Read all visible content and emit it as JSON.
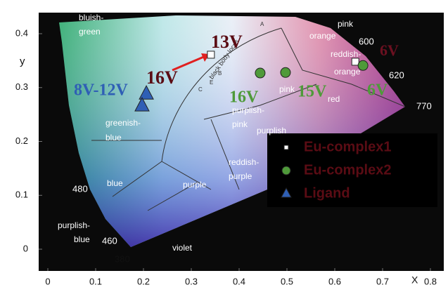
{
  "chart_data": {
    "type": "scatter",
    "x_label": "X",
    "y_label": "y",
    "xlim": [
      -0.02,
      0.83
    ],
    "ylim": [
      -0.05,
      0.44
    ],
    "xticks": [
      0,
      0.1,
      0.2,
      0.3,
      0.4,
      0.5,
      0.6,
      0.7,
      0.8
    ],
    "yticks": [
      0,
      0.1,
      0.2,
      0.3,
      0.4
    ],
    "legend_position": "lower right",
    "series": [
      {
        "name": "Eu-complex1",
        "color": "#ffffff",
        "marker": "square",
        "x": [
          0.341,
          0.643
        ],
        "values": [
          0.361,
          0.348
        ]
      },
      {
        "name": "Eu-complex2",
        "color": "#4f9a3a",
        "marker": "circle",
        "x": [
          0.444,
          0.497,
          0.659
        ],
        "values": [
          0.327,
          0.328,
          0.341
        ]
      },
      {
        "name": "Ligand",
        "color": "#2f5fb5",
        "marker": "triangle",
        "x": [
          0.206,
          0.197
        ],
        "values": [
          0.289,
          0.267
        ]
      }
    ],
    "point_labels": [
      "13V",
      "16V",
      "8V-12V",
      "16V",
      "15V",
      "6V",
      "6V"
    ],
    "regions": [
      "bluish-",
      "green",
      "greenish-",
      "blue",
      "blue",
      "purplish-",
      "blue",
      "violet",
      "purple",
      "reddish-",
      "purple",
      "purplish-",
      "pink",
      "pink",
      "red",
      "orange",
      "reddish-",
      "orange",
      "pink",
      "black body locus",
      "A",
      "B",
      "C",
      "E",
      "purplish"
    ],
    "wavelengths": [
      "480",
      "460",
      "380",
      "600",
      "620",
      "770"
    ]
  }
}
